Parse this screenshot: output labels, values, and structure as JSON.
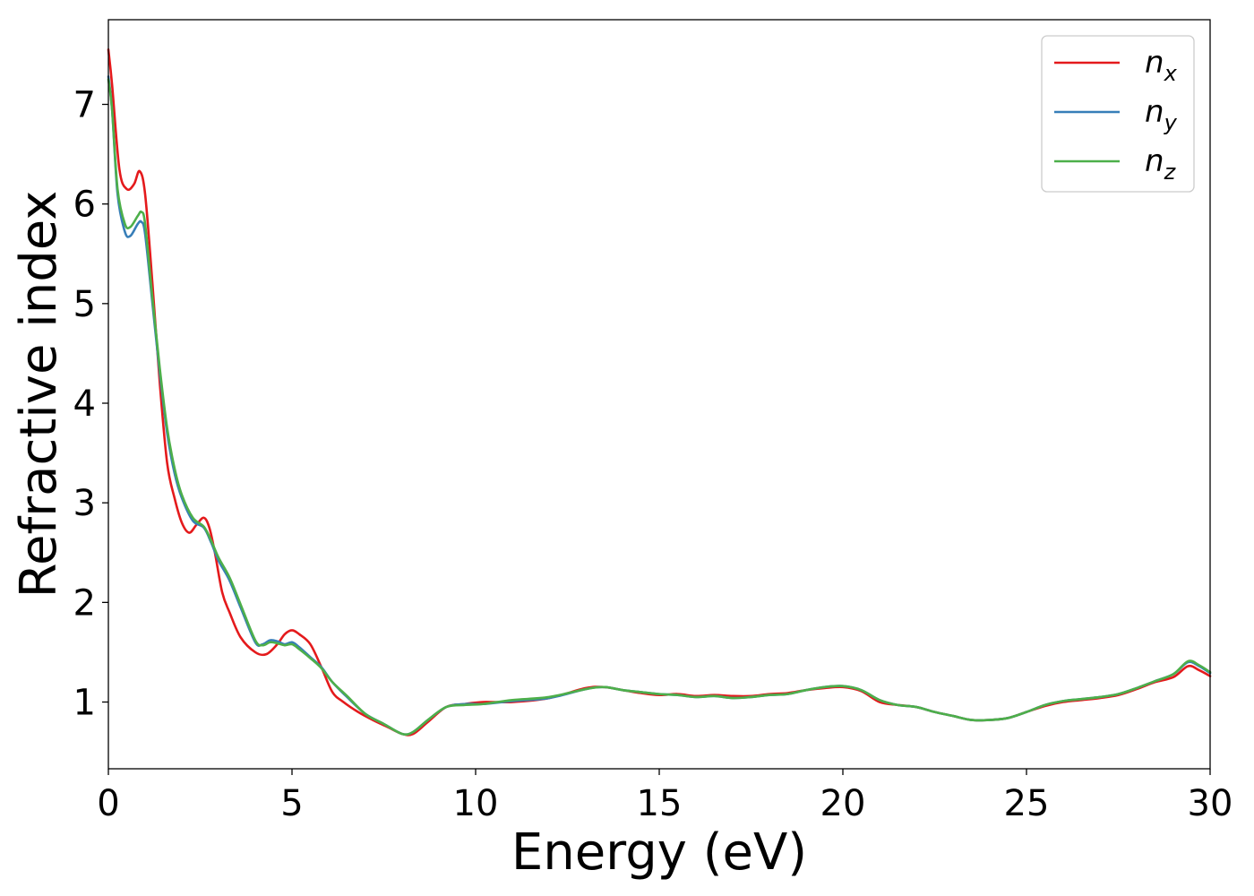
{
  "chart_data": {
    "type": "line",
    "title": "",
    "xlabel": "Energy (eV)",
    "ylabel": "Refractive index",
    "xlim": [
      0,
      30
    ],
    "ylim": [
      0.33,
      7.85
    ],
    "xticks": [
      0,
      5,
      10,
      15,
      20,
      25,
      30
    ],
    "xtick_labels": [
      "0",
      "5",
      "10",
      "15",
      "20",
      "25",
      "30"
    ],
    "yticks": [
      1,
      2,
      3,
      4,
      5,
      6,
      7
    ],
    "ytick_labels": [
      "1",
      "2",
      "3",
      "4",
      "5",
      "6",
      "7"
    ],
    "grid": false,
    "legend": {
      "position": "top-right"
    },
    "series": [
      {
        "name": "n_x",
        "label_base": "n",
        "label_sub": "x",
        "color": "#e41a1c",
        "x": [
          0,
          0.1,
          0.3,
          0.5,
          0.7,
          0.85,
          1.0,
          1.2,
          1.4,
          1.6,
          1.8,
          2.0,
          2.2,
          2.4,
          2.6,
          2.75,
          2.9,
          3.1,
          3.3,
          3.6,
          4.0,
          4.3,
          4.6,
          4.8,
          5.0,
          5.2,
          5.5,
          5.8,
          6.1,
          6.4,
          6.8,
          7.2,
          7.6,
          8.0,
          8.3,
          8.7,
          9.2,
          9.7,
          10.2,
          11.0,
          12.0,
          13.0,
          13.5,
          14.0,
          14.5,
          15.0,
          15.5,
          16.0,
          16.5,
          17.0,
          17.5,
          18.0,
          18.5,
          19.0,
          19.5,
          20.0,
          20.5,
          21.0,
          21.5,
          22.0,
          22.5,
          23.0,
          23.5,
          24.0,
          24.5,
          25.0,
          25.5,
          26.0,
          26.5,
          27.0,
          27.5,
          28.0,
          28.5,
          29.0,
          29.4,
          29.7,
          30.0
        ],
        "y": [
          7.55,
          7.2,
          6.35,
          6.15,
          6.2,
          6.33,
          6.1,
          5.2,
          4.2,
          3.4,
          3.05,
          2.8,
          2.7,
          2.78,
          2.85,
          2.75,
          2.5,
          2.1,
          1.9,
          1.65,
          1.5,
          1.48,
          1.58,
          1.68,
          1.72,
          1.68,
          1.58,
          1.35,
          1.1,
          1.0,
          0.9,
          0.82,
          0.75,
          0.68,
          0.68,
          0.8,
          0.95,
          0.98,
          1.0,
          1.0,
          1.04,
          1.14,
          1.15,
          1.12,
          1.09,
          1.07,
          1.08,
          1.06,
          1.07,
          1.06,
          1.06,
          1.08,
          1.09,
          1.12,
          1.14,
          1.15,
          1.11,
          1.0,
          0.97,
          0.95,
          0.9,
          0.86,
          0.82,
          0.82,
          0.84,
          0.9,
          0.96,
          1.0,
          1.02,
          1.04,
          1.07,
          1.13,
          1.2,
          1.25,
          1.36,
          1.32,
          1.26
        ]
      },
      {
        "name": "n_y",
        "label_base": "n",
        "label_sub": "y",
        "color": "#377eb8",
        "x": [
          0,
          0.1,
          0.25,
          0.45,
          0.6,
          0.8,
          0.9,
          1.0,
          1.2,
          1.4,
          1.6,
          1.8,
          2.0,
          2.3,
          2.6,
          2.8,
          3.0,
          3.3,
          3.6,
          4.0,
          4.2,
          4.4,
          4.6,
          4.8,
          5.0,
          5.2,
          5.5,
          5.8,
          6.1,
          6.5,
          7.0,
          7.5,
          8.0,
          8.3,
          8.7,
          9.2,
          9.7,
          10.2,
          11.0,
          12.0,
          13.0,
          13.5,
          14.0,
          14.5,
          15.0,
          15.5,
          16.0,
          16.5,
          17.0,
          17.5,
          18.0,
          18.5,
          19.0,
          19.5,
          20.0,
          20.5,
          21.0,
          21.5,
          22.0,
          22.5,
          23.0,
          23.5,
          24.0,
          24.5,
          25.0,
          25.5,
          26.0,
          26.5,
          27.0,
          27.5,
          28.0,
          28.5,
          29.0,
          29.4,
          29.7,
          30.0
        ],
        "y": [
          7.28,
          6.95,
          6.1,
          5.72,
          5.68,
          5.8,
          5.82,
          5.7,
          5.0,
          4.3,
          3.7,
          3.3,
          3.05,
          2.82,
          2.75,
          2.6,
          2.42,
          2.22,
          1.95,
          1.6,
          1.58,
          1.62,
          1.61,
          1.58,
          1.6,
          1.55,
          1.45,
          1.35,
          1.2,
          1.05,
          0.88,
          0.78,
          0.68,
          0.7,
          0.82,
          0.95,
          0.98,
          0.98,
          1.01,
          1.04,
          1.13,
          1.15,
          1.12,
          1.1,
          1.08,
          1.07,
          1.05,
          1.06,
          1.04,
          1.05,
          1.07,
          1.08,
          1.12,
          1.15,
          1.16,
          1.12,
          1.02,
          0.97,
          0.95,
          0.9,
          0.86,
          0.82,
          0.82,
          0.84,
          0.9,
          0.97,
          1.01,
          1.03,
          1.05,
          1.08,
          1.14,
          1.21,
          1.28,
          1.4,
          1.36,
          1.29
        ]
      },
      {
        "name": "n_z",
        "label_base": "n",
        "label_sub": "z",
        "color": "#4daf4a",
        "x": [
          0,
          0.1,
          0.25,
          0.45,
          0.6,
          0.8,
          0.9,
          1.0,
          1.2,
          1.4,
          1.6,
          1.8,
          2.0,
          2.3,
          2.6,
          2.8,
          3.0,
          3.3,
          3.6,
          4.0,
          4.2,
          4.4,
          4.6,
          4.8,
          5.0,
          5.2,
          5.5,
          5.8,
          6.1,
          6.5,
          7.0,
          7.5,
          8.0,
          8.3,
          8.7,
          9.2,
          9.7,
          10.2,
          11.0,
          12.0,
          13.0,
          13.5,
          14.0,
          14.5,
          15.0,
          15.5,
          16.0,
          16.5,
          17.0,
          17.5,
          18.0,
          18.5,
          19.0,
          19.5,
          20.0,
          20.5,
          21.0,
          21.5,
          22.0,
          22.5,
          23.0,
          23.5,
          24.0,
          24.5,
          25.0,
          25.5,
          26.0,
          26.5,
          27.0,
          27.5,
          28.0,
          28.5,
          29.0,
          29.4,
          29.7,
          30.0
        ],
        "y": [
          7.25,
          6.95,
          6.15,
          5.8,
          5.77,
          5.88,
          5.92,
          5.8,
          5.05,
          4.35,
          3.75,
          3.35,
          3.08,
          2.85,
          2.76,
          2.62,
          2.45,
          2.25,
          1.98,
          1.62,
          1.57,
          1.6,
          1.59,
          1.57,
          1.58,
          1.53,
          1.44,
          1.34,
          1.2,
          1.06,
          0.88,
          0.78,
          0.68,
          0.7,
          0.82,
          0.95,
          0.97,
          0.98,
          1.02,
          1.05,
          1.13,
          1.15,
          1.12,
          1.1,
          1.08,
          1.07,
          1.05,
          1.06,
          1.04,
          1.05,
          1.07,
          1.08,
          1.12,
          1.15,
          1.16,
          1.12,
          1.02,
          0.97,
          0.95,
          0.9,
          0.86,
          0.82,
          0.82,
          0.84,
          0.9,
          0.97,
          1.01,
          1.03,
          1.05,
          1.08,
          1.14,
          1.21,
          1.28,
          1.41,
          1.37,
          1.3
        ]
      }
    ]
  }
}
